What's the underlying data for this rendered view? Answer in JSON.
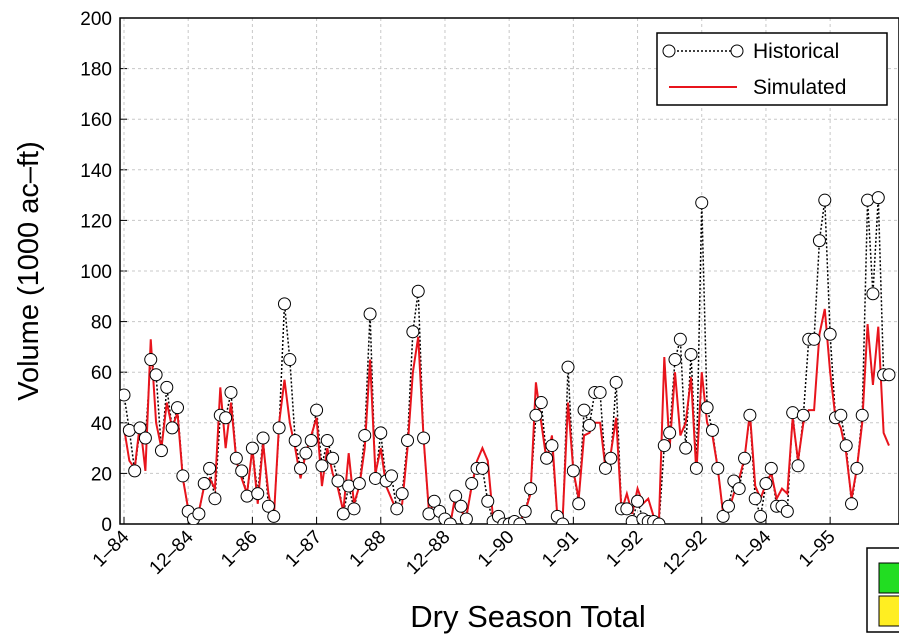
{
  "chart_data": {
    "type": "line",
    "xlabel": "Dry Season Total",
    "ylabel": "Volume (1000 ac–ft)",
    "categories": [
      "1–84",
      null,
      null,
      null,
      null,
      null,
      null,
      null,
      null,
      null,
      null,
      null,
      "12–84",
      null,
      null,
      null,
      null,
      null,
      null,
      null,
      null,
      null,
      null,
      null,
      "1–86",
      null,
      null,
      null,
      null,
      null,
      null,
      null,
      null,
      null,
      null,
      null,
      "1–87",
      null,
      null,
      null,
      null,
      null,
      null,
      null,
      null,
      null,
      null,
      null,
      "1–88",
      null,
      null,
      null,
      null,
      null,
      null,
      null,
      null,
      null,
      null,
      null,
      "12–88",
      null,
      null,
      null,
      null,
      null,
      null,
      null,
      null,
      null,
      null,
      null,
      "1–90",
      null,
      null,
      null,
      null,
      null,
      null,
      null,
      null,
      null,
      null,
      null,
      "1–91",
      null,
      null,
      null,
      null,
      null,
      null,
      null,
      null,
      null,
      null,
      null,
      "1–92",
      null,
      null,
      null,
      null,
      null,
      null,
      null,
      null,
      null,
      null,
      null,
      "12–92",
      null,
      null,
      null,
      null,
      null,
      null,
      null,
      null,
      null,
      null,
      null,
      "1–94",
      null,
      null,
      null,
      null,
      null,
      null,
      null,
      null,
      null,
      null,
      null,
      "1–95",
      null,
      null,
      null,
      null,
      null,
      null,
      null,
      null,
      null,
      null,
      null
    ],
    "series": [
      {
        "name": "Historical",
        "color": "#000000",
        "marker": "circle",
        "dash": "dotted",
        "values": [
          51,
          37,
          21,
          38,
          34,
          65,
          59,
          29,
          54,
          38,
          46,
          19,
          5,
          2,
          4,
          16,
          22,
          10,
          43,
          42,
          52,
          26,
          21,
          11,
          30,
          12,
          34,
          7,
          3,
          38,
          87,
          65,
          33,
          22,
          28,
          33,
          45,
          23,
          33,
          26,
          17,
          4,
          15,
          6,
          16,
          35,
          83,
          18,
          36,
          17,
          19,
          6,
          12,
          33,
          76,
          92,
          34,
          4,
          9,
          5,
          2,
          0,
          11,
          7,
          2,
          16,
          22,
          22,
          9,
          1,
          3,
          0,
          0,
          1,
          0,
          5,
          14,
          43,
          48,
          26,
          31,
          3,
          0,
          62,
          21,
          8,
          45,
          39,
          52,
          52,
          22,
          26,
          56,
          6,
          6,
          1,
          9,
          2,
          1,
          1,
          0,
          31,
          36,
          65,
          73,
          30,
          67,
          22,
          127,
          46,
          37,
          22,
          3,
          7,
          17,
          14,
          26,
          43,
          10,
          3,
          16,
          22,
          7,
          7,
          5,
          44,
          23,
          43,
          73,
          73,
          112,
          128,
          75,
          42,
          43,
          31,
          8,
          22,
          43,
          128,
          91,
          129,
          59,
          59
        ]
      },
      {
        "name": "Simulated",
        "color": "#e8141c",
        "marker": "none",
        "dash": "solid",
        "values": [
          38,
          25,
          22,
          40,
          21,
          73,
          40,
          30,
          48,
          38,
          44,
          18,
          6,
          0,
          5,
          15,
          18,
          14,
          54,
          30,
          48,
          25,
          18,
          12,
          30,
          8,
          32,
          12,
          2,
          40,
          57,
          40,
          30,
          18,
          28,
          35,
          42,
          15,
          30,
          20,
          14,
          5,
          28,
          8,
          15,
          30,
          65,
          20,
          30,
          15,
          10,
          5,
          8,
          30,
          60,
          74,
          34,
          5,
          8,
          3,
          2,
          0,
          12,
          5,
          3,
          15,
          25,
          30,
          25,
          2,
          4,
          2,
          2,
          0,
          1,
          5,
          12,
          56,
          40,
          25,
          35,
          3,
          2,
          48,
          21,
          10,
          35,
          36,
          40,
          40,
          22,
          28,
          42,
          5,
          12,
          4,
          14,
          8,
          10,
          3,
          1,
          66,
          30,
          60,
          35,
          40,
          58,
          20,
          60,
          40,
          35,
          22,
          4,
          5,
          12,
          18,
          26,
          44,
          15,
          10,
          16,
          20,
          10,
          14,
          12,
          42,
          25,
          40,
          45,
          45,
          75,
          85,
          60,
          42,
          38,
          28,
          10,
          22,
          40,
          79,
          55,
          78,
          36,
          31
        ]
      }
    ],
    "ylim": [
      0,
      200
    ],
    "yticks": [
      0,
      20,
      40,
      60,
      80,
      100,
      120,
      140,
      160,
      180,
      200
    ],
    "grid": true,
    "legend": "upper right"
  }
}
